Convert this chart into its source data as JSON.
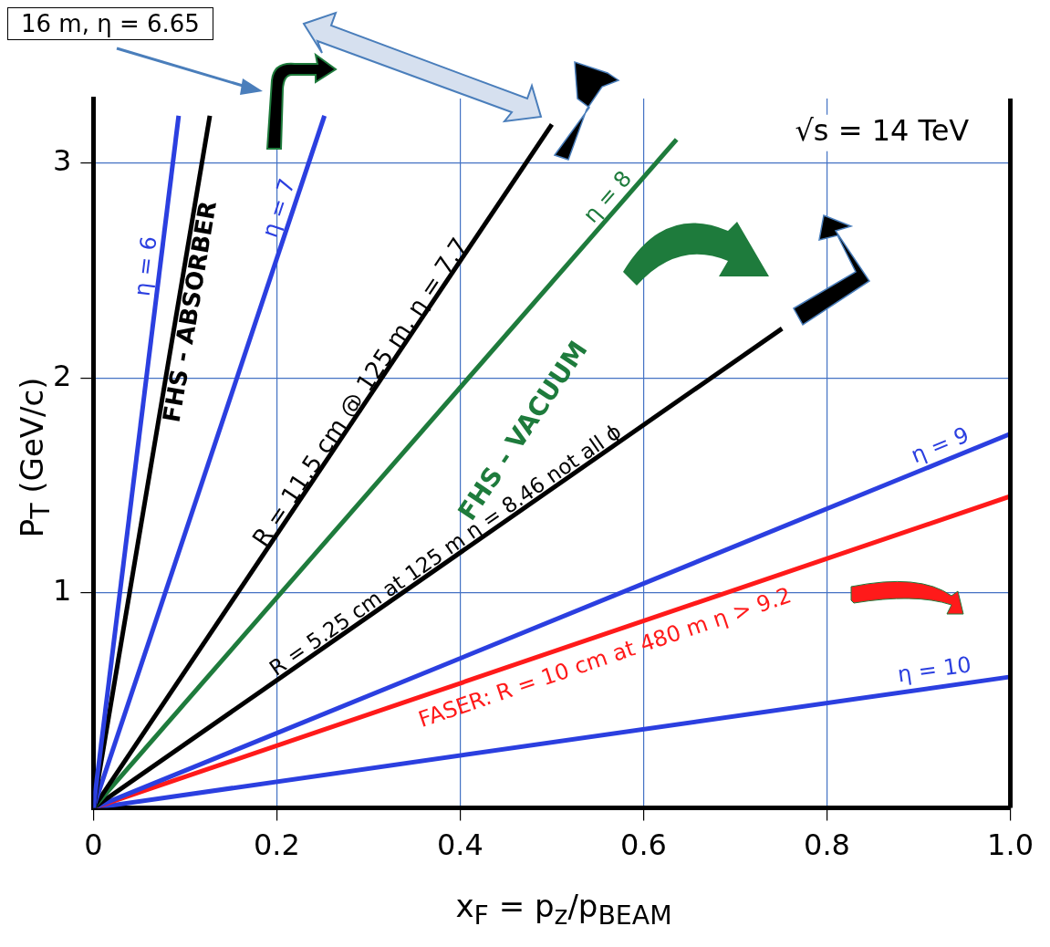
{
  "chart_data": {
    "type": "line",
    "xlabel": "x$_{F}$ = p$_{z}$/p$_{BEAM}$",
    "ylabel": "P$_{T}$ (GeV/c)",
    "xlim": [
      0,
      1
    ],
    "xticks": [
      0,
      0.2,
      0.4,
      0.6,
      0.8,
      {
        "value": 1,
        "label": "1.0"
      }
    ],
    "ylim": [
      0,
      3.3
    ],
    "yticks": [
      1,
      2,
      3
    ],
    "grid": true,
    "series": [
      {
        "name": "η = 6",
        "color": "#2b3fe0",
        "x": [
          0,
          0.093
        ],
        "values": [
          0,
          3.22
        ]
      },
      {
        "name": "FHS - ABSORBER",
        "color": "#000000",
        "x": [
          0,
          0.127
        ],
        "values": [
          0,
          3.22
        ]
      },
      {
        "name": "η = 7",
        "color": "#2b3fe0",
        "x": [
          0,
          0.252
        ],
        "values": [
          0,
          3.22
        ]
      },
      {
        "name": "R = 11.5 cm @ 125 m, η = 7.7",
        "color": "#000000",
        "x": [
          0,
          0.5
        ],
        "values": [
          0,
          3.18
        ]
      },
      {
        "name": "η = 8",
        "color": "#1e7b3c",
        "x": [
          0,
          0.636
        ],
        "values": [
          0,
          3.11
        ]
      },
      {
        "name": "R = 5.25 cm at 125 m η = 8.46 not all ϕ",
        "color": "#000000",
        "x": [
          0,
          0.751
        ],
        "values": [
          0,
          2.23
        ]
      },
      {
        "name": "η = 9",
        "color": "#2b3fe0",
        "x": [
          0,
          1
        ],
        "values": [
          0,
          1.74
        ]
      },
      {
        "name": "FASER: R = 10 cm at 480 m η > 9.2",
        "color": "#ff1a1a",
        "x": [
          0,
          1
        ],
        "values": [
          0,
          1.45
        ]
      },
      {
        "name": "η = 10",
        "color": "#2b3fe0",
        "x": [
          0,
          1
        ],
        "values": [
          0,
          0.61
        ]
      }
    ],
    "annotations": [
      "FHS - VACUUM",
      "√s = 14 TeV",
      "16 m, η = 6.65"
    ]
  }
}
